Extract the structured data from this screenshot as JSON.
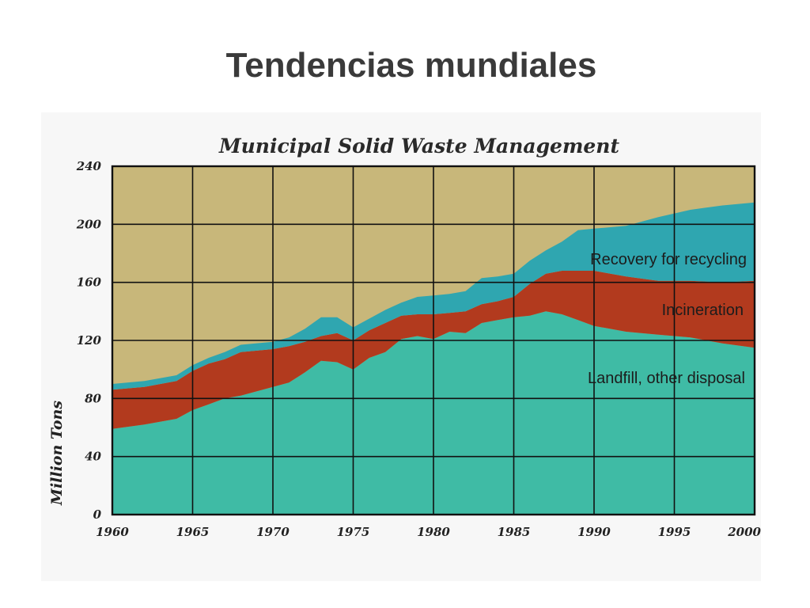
{
  "slide": {
    "title": "Tendencias mundiales"
  },
  "colors": {
    "background": "#c8b77a",
    "landfill": "#3fbba5",
    "incineration": "#b23a1e",
    "recovery": "#2fa6b0",
    "grid": "#111111"
  },
  "chart_data": {
    "type": "area",
    "stacked": true,
    "title": "Municipal Solid Waste Management",
    "xlabel": "",
    "ylabel": "Million Tons",
    "xlim": [
      1960,
      2000
    ],
    "ylim": [
      0,
      240
    ],
    "x_ticks": [
      1960,
      1965,
      1970,
      1975,
      1980,
      1985,
      1990,
      1995,
      2000
    ],
    "y_ticks": [
      0,
      40,
      80,
      120,
      160,
      200,
      240
    ],
    "grid": true,
    "x": [
      1960,
      1962,
      1964,
      1965,
      1966,
      1967,
      1968,
      1970,
      1971,
      1972,
      1973,
      1974,
      1975,
      1976,
      1977,
      1978,
      1979,
      1980,
      1981,
      1982,
      1983,
      1984,
      1985,
      1986,
      1987,
      1988,
      1989,
      1990,
      1992,
      1994,
      1996,
      1998,
      2000
    ],
    "series": [
      {
        "name": "Landfill, other disposal",
        "values": [
          59,
          62,
          66,
          72,
          76,
          80,
          82,
          88,
          91,
          98,
          106,
          105,
          100,
          108,
          112,
          121,
          123,
          121,
          126,
          125,
          132,
          134,
          136,
          137,
          140,
          138,
          134,
          130,
          126,
          124,
          122,
          118,
          115
        ]
      },
      {
        "name": "Incineration",
        "values": [
          27,
          26,
          26,
          27,
          28,
          27,
          30,
          26,
          25,
          21,
          17,
          20,
          20,
          19,
          20,
          16,
          15,
          17,
          13,
          15,
          13,
          13,
          14,
          22,
          26,
          30,
          34,
          38,
          38,
          37,
          39,
          42,
          46
        ]
      },
      {
        "name": "Recovery for recycling",
        "values": [
          4,
          4,
          4,
          4,
          4,
          5,
          5,
          5,
          6,
          9,
          13,
          11,
          9,
          8,
          9,
          9,
          12,
          13,
          13,
          14,
          18,
          17,
          16,
          16,
          16,
          20,
          28,
          29,
          35,
          44,
          49,
          53,
          54
        ]
      }
    ]
  }
}
